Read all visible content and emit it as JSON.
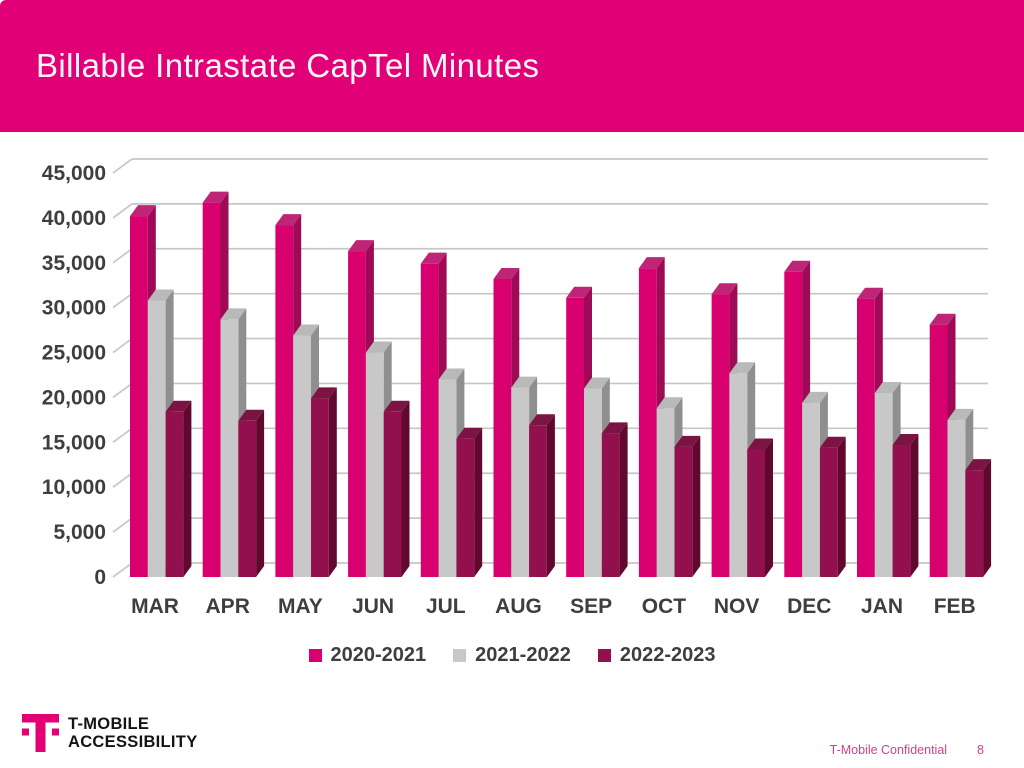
{
  "slide": {
    "title": "Billable Intrastate CapTel Minutes",
    "logo": {
      "line1": "T-MOBILE",
      "line2": "ACCESSIBILITY",
      "brand_color": "#E20074"
    },
    "footer": {
      "confidential": "T-Mobile Confidential",
      "page_number": "8"
    }
  },
  "colors": {
    "header_background": "#E20077",
    "title_text": "#FFF6FA",
    "axis_text": "#3E3E3E",
    "gridline": "#C6C6C6",
    "footer_text": "#D2418D"
  },
  "chart_data": {
    "type": "bar",
    "style": "3d-clustered-column",
    "title": "",
    "xlabel": "",
    "ylabel": "",
    "categories": [
      "MAR",
      "APR",
      "MAY",
      "JUN",
      "JUL",
      "AUG",
      "SEP",
      "OCT",
      "NOV",
      "DEC",
      "JAN",
      "FEB"
    ],
    "series": [
      {
        "name": "2020-2021",
        "color": "#D8006F",
        "side_color": "#9E0A55",
        "top_color": "#BE2577",
        "values": [
          40200,
          41700,
          39200,
          36300,
          34900,
          33200,
          31100,
          34400,
          31500,
          34000,
          31000,
          28100
        ]
      },
      {
        "name": "2021-2022",
        "color": "#C8C8C8",
        "side_color": "#8F8F8F",
        "top_color": "#B8BABA",
        "values": [
          30800,
          28700,
          26900,
          25000,
          22000,
          21100,
          21000,
          18800,
          22700,
          19400,
          20500,
          17500
        ]
      },
      {
        "name": "2022-2023",
        "color": "#93104F",
        "side_color": "#61082F",
        "top_color": "#7C1443",
        "values": [
          18400,
          17400,
          19900,
          18400,
          15400,
          16900,
          16000,
          14500,
          14200,
          14400,
          14700,
          11900
        ]
      }
    ],
    "ylim": [
      0,
      45000
    ],
    "ytick_step": 5000,
    "grid": true,
    "legend_position": "bottom"
  }
}
